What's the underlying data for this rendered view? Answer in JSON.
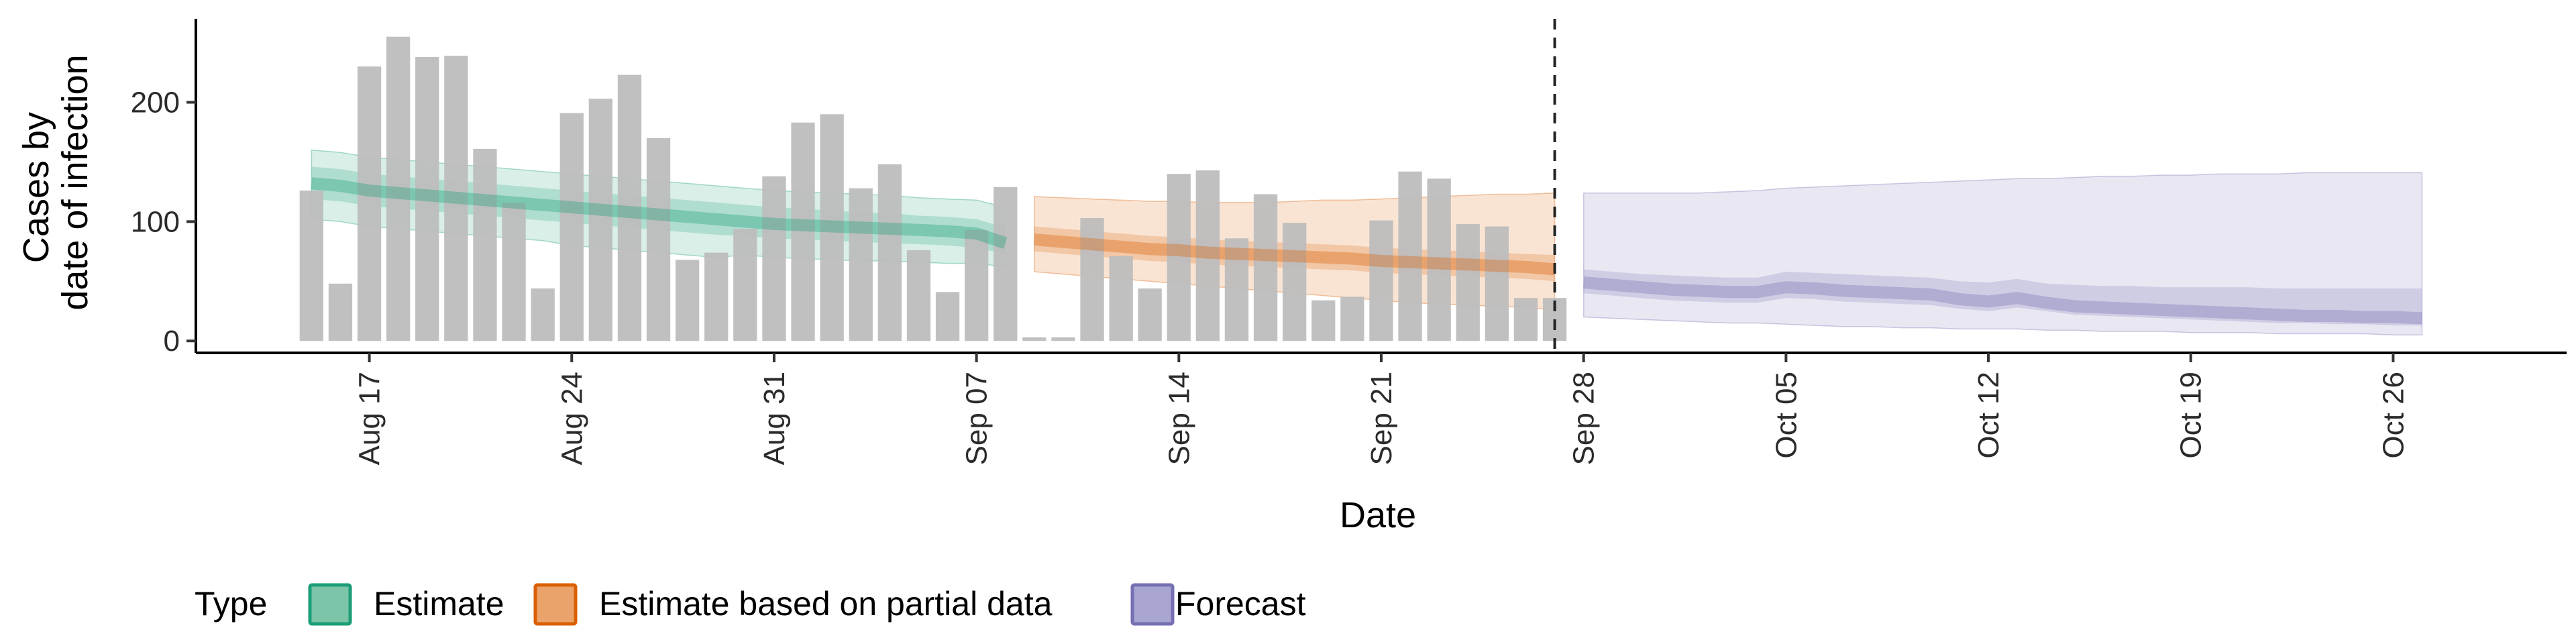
{
  "chart_data": {
    "type": "bar",
    "xlabel": "Date",
    "ylabel_lines": [
      "Cases by",
      "date of infection"
    ],
    "ylim": [
      -10,
      270
    ],
    "y_ticks": [
      0,
      100,
      200
    ],
    "x_ticks": [
      "Aug 17",
      "Aug 24",
      "Aug 31",
      "Sep 07",
      "Sep 14",
      "Sep 21",
      "Sep 28",
      "Oct 05",
      "Oct 12",
      "Oct 19",
      "Oct 26"
    ],
    "x_tick_dates": [
      "2020-08-17",
      "2020-08-24",
      "2020-08-31",
      "2020-09-07",
      "2020-09-14",
      "2020-09-21",
      "2020-09-28",
      "2020-10-05",
      "2020-10-12",
      "2020-10-19",
      "2020-10-26"
    ],
    "xlim": [
      "2020-08-11",
      "2020-11-01"
    ],
    "vline_date": "2020-09-27",
    "grid": false,
    "legend_position": "bottom-left",
    "legend_title": "Type",
    "legend": [
      {
        "label": "Estimate",
        "fill": "#7dc5a9",
        "stroke": "#1b9e77"
      },
      {
        "label": "Estimate based on partial data",
        "fill": "#eaa36b",
        "stroke": "#d95f02"
      },
      {
        "label": "Forecast",
        "fill": "#a9a6d2",
        "stroke": "#7570b3"
      }
    ],
    "bars": {
      "dates": [
        "2020-08-15",
        "2020-08-16",
        "2020-08-17",
        "2020-08-18",
        "2020-08-19",
        "2020-08-20",
        "2020-08-21",
        "2020-08-22",
        "2020-08-23",
        "2020-08-24",
        "2020-08-25",
        "2020-08-26",
        "2020-08-27",
        "2020-08-28",
        "2020-08-29",
        "2020-08-30",
        "2020-08-31",
        "2020-09-01",
        "2020-09-02",
        "2020-09-03",
        "2020-09-04",
        "2020-09-05",
        "2020-09-06",
        "2020-09-07",
        "2020-09-08",
        "2020-09-09",
        "2020-09-10",
        "2020-09-11",
        "2020-09-12",
        "2020-09-13",
        "2020-09-14",
        "2020-09-15",
        "2020-09-16",
        "2020-09-17",
        "2020-09-18",
        "2020-09-19",
        "2020-09-20",
        "2020-09-21",
        "2020-09-22",
        "2020-09-23",
        "2020-09-24",
        "2020-09-25",
        "2020-09-26",
        "2020-09-27"
      ],
      "values": [
        126,
        48,
        230,
        255,
        238,
        239,
        161,
        116,
        44,
        191,
        203,
        223,
        170,
        68,
        74,
        94,
        138,
        183,
        190,
        128,
        148,
        76,
        41,
        93,
        129,
        3,
        3,
        103,
        71,
        44,
        140,
        143,
        86,
        123,
        99,
        34,
        37,
        101,
        142,
        136,
        98,
        96,
        36,
        36
      ],
      "color": "#bdbdbd"
    },
    "series": [
      {
        "type": "Estimate",
        "dates": [
          "2020-08-15",
          "2020-08-16",
          "2020-08-17",
          "2020-08-18",
          "2020-08-19",
          "2020-08-20",
          "2020-08-21",
          "2020-08-22",
          "2020-08-23",
          "2020-08-24",
          "2020-08-25",
          "2020-08-26",
          "2020-08-27",
          "2020-08-28",
          "2020-08-29",
          "2020-08-30",
          "2020-08-31",
          "2020-09-01",
          "2020-09-02",
          "2020-09-03",
          "2020-09-04",
          "2020-09-05",
          "2020-09-06",
          "2020-09-07",
          "2020-09-08"
        ],
        "median": [
          132,
          130,
          126,
          124,
          122,
          120,
          118,
          116,
          114,
          112,
          110,
          108,
          106,
          104,
          102,
          100,
          98,
          97,
          96,
          95,
          94,
          93,
          92,
          90,
          82
        ],
        "lower_50": [
          119,
          117,
          113,
          111,
          109,
          107,
          105,
          103,
          101,
          99,
          97,
          95,
          93,
          91,
          89,
          88,
          86,
          85,
          84,
          83,
          82,
          81,
          80,
          78,
          73
        ],
        "upper_50": [
          146,
          144,
          140,
          138,
          136,
          134,
          132,
          130,
          128,
          126,
          124,
          122,
          120,
          118,
          116,
          114,
          112,
          111,
          109,
          108,
          107,
          105,
          104,
          102,
          95
        ],
        "lower_90": [
          102,
          100,
          96,
          94,
          92,
          90,
          88,
          86,
          84,
          80,
          78,
          76,
          74,
          72,
          70,
          72,
          70,
          69,
          68,
          67,
          67,
          66,
          65,
          65,
          62
        ],
        "upper_90": [
          160,
          158,
          154,
          152,
          150,
          148,
          146,
          144,
          142,
          140,
          138,
          136,
          134,
          132,
          130,
          128,
          126,
          125,
          124,
          123,
          122,
          120,
          119,
          118,
          112
        ]
      },
      {
        "type": "Estimate based on partial data",
        "dates": [
          "2020-09-09",
          "2020-09-10",
          "2020-09-11",
          "2020-09-12",
          "2020-09-13",
          "2020-09-14",
          "2020-09-15",
          "2020-09-16",
          "2020-09-17",
          "2020-09-18",
          "2020-09-19",
          "2020-09-20",
          "2020-09-21",
          "2020-09-22",
          "2020-09-23",
          "2020-09-24",
          "2020-09-25",
          "2020-09-26",
          "2020-09-27"
        ],
        "median": [
          85,
          83,
          81,
          79,
          77,
          76,
          74,
          73,
          72,
          71,
          70,
          69,
          67,
          66,
          65,
          64,
          63,
          62,
          60
        ],
        "lower_50": [
          75,
          73,
          71,
          69,
          67,
          66,
          64,
          63,
          62,
          61,
          60,
          59,
          57,
          56,
          55,
          54,
          53,
          52,
          50
        ],
        "upper_50": [
          96,
          94,
          92,
          90,
          88,
          87,
          85,
          84,
          83,
          82,
          81,
          80,
          78,
          77,
          76,
          75,
          74,
          73,
          72
        ],
        "lower_90": [
          58,
          56,
          54,
          52,
          50,
          48,
          46,
          44,
          42,
          40,
          38,
          36,
          34,
          32,
          31,
          30,
          29,
          28,
          26
        ],
        "upper_90": [
          121,
          120,
          119,
          118,
          117,
          117,
          116,
          116,
          116,
          117,
          118,
          118,
          119,
          120,
          121,
          122,
          123,
          123,
          124
        ]
      },
      {
        "type": "Forecast",
        "dates": [
          "2020-09-28",
          "2020-09-29",
          "2020-09-30",
          "2020-10-01",
          "2020-10-02",
          "2020-10-03",
          "2020-10-04",
          "2020-10-05",
          "2020-10-06",
          "2020-10-07",
          "2020-10-08",
          "2020-10-09",
          "2020-10-10",
          "2020-10-11",
          "2020-10-12",
          "2020-10-13",
          "2020-10-14",
          "2020-10-15",
          "2020-10-16",
          "2020-10-17",
          "2020-10-18",
          "2020-10-19",
          "2020-10-20",
          "2020-10-21",
          "2020-10-22",
          "2020-10-23",
          "2020-10-24",
          "2020-10-25",
          "2020-10-26",
          "2020-10-27"
        ],
        "median": [
          49,
          47,
          45,
          43,
          42,
          41,
          41,
          45,
          44,
          42,
          41,
          40,
          39,
          35,
          33,
          36,
          32,
          29,
          28,
          27,
          26,
          25,
          24,
          23,
          22,
          21,
          21,
          20,
          20,
          19
        ],
        "lower_50": [
          40,
          38,
          36,
          34,
          33,
          32,
          32,
          36,
          35,
          33,
          32,
          31,
          30,
          27,
          25,
          28,
          25,
          22,
          21,
          20,
          19,
          18,
          17,
          16,
          15,
          15,
          14,
          14,
          13,
          13
        ],
        "upper_50": [
          60,
          58,
          56,
          55,
          54,
          53,
          53,
          58,
          57,
          56,
          55,
          54,
          53,
          50,
          49,
          52,
          48,
          47,
          46,
          46,
          45,
          45,
          45,
          45,
          44,
          44,
          44,
          44,
          44,
          44
        ],
        "lower_90": [
          20,
          19,
          18,
          17,
          16,
          15,
          15,
          14,
          13,
          12,
          12,
          11,
          11,
          10,
          10,
          10,
          9,
          9,
          8,
          8,
          8,
          7,
          7,
          7,
          6,
          6,
          6,
          6,
          5,
          5
        ],
        "upper_90": [
          124,
          124,
          124,
          124,
          124,
          125,
          126,
          128,
          129,
          130,
          131,
          132,
          133,
          134,
          135,
          136,
          136,
          137,
          138,
          138,
          139,
          139,
          140,
          140,
          140,
          141,
          141,
          141,
          141,
          141
        ]
      }
    ]
  }
}
